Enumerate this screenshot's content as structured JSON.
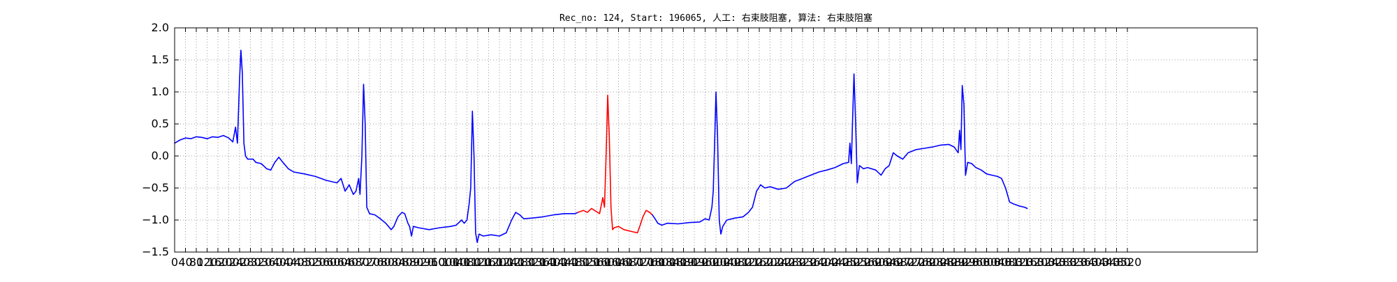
{
  "chart_data": {
    "type": "line",
    "title": "Rec_no: 124, Start: 196065, 人工: 右束肢阻塞, 算法: 右束肢阻塞",
    "xlabel": "",
    "ylabel": "",
    "xlim": [
      0,
      4000
    ],
    "ylim": [
      -1.5,
      2.0
    ],
    "grid": true,
    "x_tick_step": 40,
    "x_tick_max": 3520,
    "y_ticks": [
      "2.0",
      "1.5",
      "1.0",
      "0.5",
      "0.0",
      "−0.5",
      "−1.0",
      "−1.5"
    ],
    "y_tick_values": [
      2.0,
      1.5,
      1.0,
      0.5,
      0.0,
      -0.5,
      -1.0,
      -1.5
    ],
    "colors": {
      "signal": "#0000ff",
      "highlight": "#ff0000",
      "grid": "#808080",
      "axes": "#000000"
    },
    "series": [
      {
        "color": "#0000ff",
        "points": [
          [
            0,
            0.2
          ],
          [
            20,
            0.25
          ],
          [
            40,
            0.28
          ],
          [
            60,
            0.27
          ],
          [
            80,
            0.3
          ],
          [
            100,
            0.29
          ],
          [
            120,
            0.27
          ],
          [
            140,
            0.3
          ],
          [
            160,
            0.29
          ],
          [
            180,
            0.32
          ],
          [
            200,
            0.28
          ],
          [
            215,
            0.22
          ],
          [
            225,
            0.45
          ],
          [
            232,
            0.2
          ],
          [
            240,
            1.2
          ],
          [
            245,
            1.65
          ],
          [
            250,
            1.3
          ],
          [
            256,
            0.2
          ],
          [
            262,
            0.0
          ],
          [
            270,
            -0.05
          ],
          [
            290,
            -0.05
          ],
          [
            300,
            -0.1
          ],
          [
            320,
            -0.12
          ],
          [
            340,
            -0.2
          ],
          [
            355,
            -0.22
          ],
          [
            370,
            -0.1
          ],
          [
            385,
            -0.02
          ],
          [
            400,
            -0.1
          ],
          [
            420,
            -0.2
          ],
          [
            440,
            -0.25
          ],
          [
            480,
            -0.28
          ],
          [
            520,
            -0.32
          ],
          [
            560,
            -0.38
          ],
          [
            600,
            -0.42
          ],
          [
            615,
            -0.35
          ],
          [
            630,
            -0.55
          ],
          [
            645,
            -0.45
          ],
          [
            660,
            -0.6
          ],
          [
            670,
            -0.55
          ],
          [
            680,
            -0.35
          ],
          [
            685,
            -0.6
          ],
          [
            692,
            0.0
          ],
          [
            698,
            1.12
          ],
          [
            704,
            0.5
          ],
          [
            710,
            -0.8
          ],
          [
            720,
            -0.9
          ],
          [
            740,
            -0.92
          ],
          [
            760,
            -0.98
          ],
          [
            780,
            -1.05
          ],
          [
            800,
            -1.15
          ],
          [
            810,
            -1.1
          ],
          [
            825,
            -0.95
          ],
          [
            840,
            -0.88
          ],
          [
            850,
            -0.9
          ],
          [
            862,
            -1.05
          ],
          [
            868,
            -1.1
          ],
          [
            875,
            -1.25
          ],
          [
            882,
            -1.1
          ],
          [
            900,
            -1.12
          ],
          [
            940,
            -1.15
          ],
          [
            980,
            -1.12
          ],
          [
            1020,
            -1.1
          ],
          [
            1040,
            -1.08
          ],
          [
            1060,
            -1.0
          ],
          [
            1070,
            -1.05
          ],
          [
            1080,
            -1.0
          ],
          [
            1088,
            -0.75
          ],
          [
            1094,
            -0.5
          ],
          [
            1100,
            0.7
          ],
          [
            1106,
            0.0
          ],
          [
            1112,
            -1.2
          ],
          [
            1118,
            -1.35
          ],
          [
            1125,
            -1.22
          ],
          [
            1140,
            -1.25
          ],
          [
            1170,
            -1.23
          ],
          [
            1200,
            -1.25
          ],
          [
            1225,
            -1.2
          ],
          [
            1245,
            -1.0
          ],
          [
            1260,
            -0.88
          ],
          [
            1275,
            -0.92
          ],
          [
            1290,
            -0.98
          ],
          [
            1320,
            -0.97
          ],
          [
            1360,
            -0.95
          ],
          [
            1400,
            -0.92
          ],
          [
            1440,
            -0.9
          ],
          [
            1480,
            -0.9
          ],
          [
            1490,
            -0.88
          ]
        ]
      },
      {
        "color": "#ff0000",
        "points": [
          [
            1490,
            -0.88
          ],
          [
            1510,
            -0.85
          ],
          [
            1525,
            -0.88
          ],
          [
            1540,
            -0.82
          ],
          [
            1555,
            -0.86
          ],
          [
            1570,
            -0.9
          ],
          [
            1582,
            -0.65
          ],
          [
            1588,
            -0.8
          ],
          [
            1594,
            0.0
          ],
          [
            1600,
            0.95
          ],
          [
            1606,
            0.3
          ],
          [
            1612,
            -0.8
          ],
          [
            1618,
            -1.15
          ],
          [
            1624,
            -1.12
          ],
          [
            1640,
            -1.1
          ],
          [
            1660,
            -1.15
          ],
          [
            1690,
            -1.18
          ],
          [
            1710,
            -1.2
          ],
          [
            1720,
            -1.08
          ],
          [
            1730,
            -0.95
          ],
          [
            1742,
            -0.85
          ],
          [
            1755,
            -0.88
          ],
          [
            1765,
            -0.92
          ]
        ]
      },
      {
        "color": "#0000ff",
        "points": [
          [
            1765,
            -0.92
          ],
          [
            1775,
            -0.98
          ],
          [
            1785,
            -1.05
          ],
          [
            1800,
            -1.08
          ],
          [
            1820,
            -1.05
          ],
          [
            1860,
            -1.06
          ],
          [
            1900,
            -1.04
          ],
          [
            1940,
            -1.03
          ],
          [
            1960,
            -0.98
          ],
          [
            1975,
            -1.0
          ],
          [
            1985,
            -0.8
          ],
          [
            1990,
            -0.55
          ],
          [
            1995,
            0.2
          ],
          [
            2000,
            1.0
          ],
          [
            2006,
            0.3
          ],
          [
            2012,
            -1.0
          ],
          [
            2018,
            -1.22
          ],
          [
            2025,
            -1.1
          ],
          [
            2040,
            -1.0
          ],
          [
            2070,
            -0.97
          ],
          [
            2100,
            -0.95
          ],
          [
            2120,
            -0.88
          ],
          [
            2135,
            -0.8
          ],
          [
            2150,
            -0.55
          ],
          [
            2165,
            -0.45
          ],
          [
            2180,
            -0.5
          ],
          [
            2200,
            -0.48
          ],
          [
            2230,
            -0.52
          ],
          [
            2260,
            -0.5
          ],
          [
            2290,
            -0.4
          ],
          [
            2320,
            -0.35
          ],
          [
            2350,
            -0.3
          ],
          [
            2380,
            -0.25
          ],
          [
            2410,
            -0.22
          ],
          [
            2440,
            -0.18
          ],
          [
            2470,
            -0.12
          ],
          [
            2490,
            -0.1
          ],
          [
            2495,
            0.2
          ],
          [
            2500,
            -0.12
          ],
          [
            2505,
            0.6
          ],
          [
            2510,
            1.28
          ],
          [
            2516,
            0.5
          ],
          [
            2522,
            -0.42
          ],
          [
            2530,
            -0.15
          ],
          [
            2545,
            -0.2
          ],
          [
            2560,
            -0.18
          ],
          [
            2590,
            -0.22
          ],
          [
            2610,
            -0.3
          ],
          [
            2625,
            -0.2
          ],
          [
            2640,
            -0.15
          ],
          [
            2655,
            0.05
          ],
          [
            2670,
            0.0
          ],
          [
            2690,
            -0.05
          ],
          [
            2710,
            0.05
          ],
          [
            2740,
            0.1
          ],
          [
            2770,
            0.12
          ],
          [
            2800,
            0.14
          ],
          [
            2830,
            0.17
          ],
          [
            2860,
            0.18
          ],
          [
            2880,
            0.14
          ],
          [
            2895,
            0.05
          ],
          [
            2900,
            0.4
          ],
          [
            2905,
            0.1
          ],
          [
            2910,
            1.1
          ],
          [
            2916,
            0.8
          ],
          [
            2922,
            -0.3
          ],
          [
            2930,
            -0.1
          ],
          [
            2945,
            -0.12
          ],
          [
            2960,
            -0.18
          ],
          [
            2980,
            -0.22
          ],
          [
            3000,
            -0.28
          ],
          [
            3020,
            -0.3
          ],
          [
            3040,
            -0.32
          ],
          [
            3055,
            -0.35
          ],
          [
            3070,
            -0.5
          ],
          [
            3085,
            -0.72
          ],
          [
            3100,
            -0.75
          ],
          [
            3120,
            -0.78
          ],
          [
            3140,
            -0.8
          ],
          [
            3150,
            -0.82
          ]
        ]
      }
    ]
  }
}
